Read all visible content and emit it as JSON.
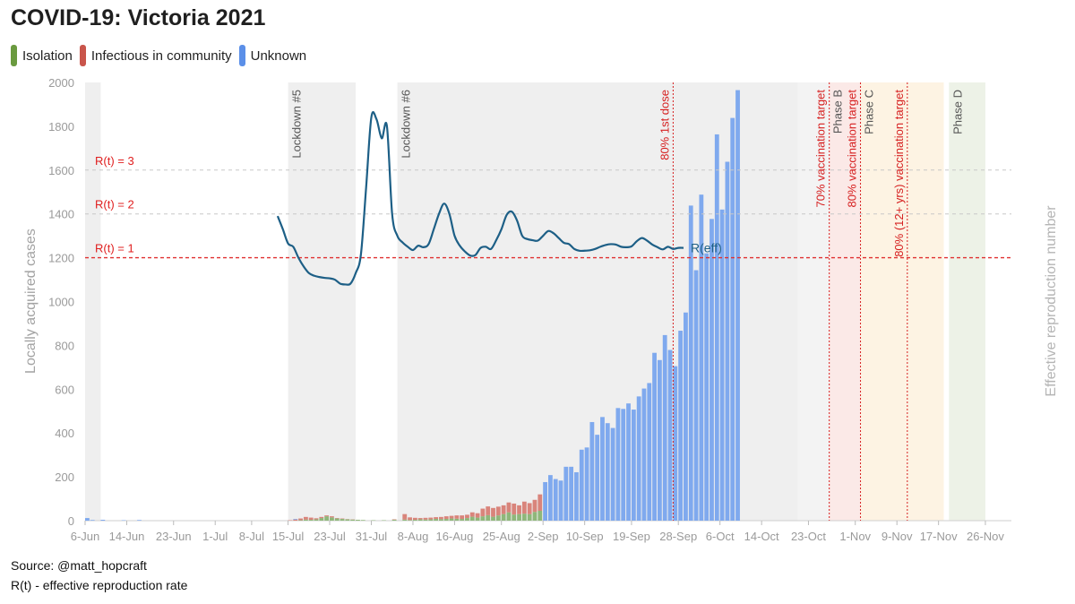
{
  "title": "COVID-19: Victoria 2021",
  "legend": [
    {
      "label": "Isolation",
      "color": "#6a9a3f"
    },
    {
      "label": "Infectious in community",
      "color": "#c9554b"
    },
    {
      "label": "Unknown",
      "color": "#5b8fe8"
    }
  ],
  "footer": {
    "source": "Source: @matt_hopcraft",
    "note": "R(t) - effective reproduction rate"
  },
  "chart_data": {
    "type": "bar",
    "title": "COVID-19: Victoria 2021",
    "ylabel": "Locally acquired cases",
    "y2label": "Effective reproduction number",
    "ylim": [
      0,
      2000
    ],
    "yticks": [
      0,
      200,
      400,
      600,
      800,
      1000,
      1200,
      1400,
      1600,
      1800,
      2000
    ],
    "xlim": [
      "2021-06-06",
      "2021-12-01"
    ],
    "xticks": [
      {
        "date": "2021-06-06",
        "label": "6-Jun"
      },
      {
        "date": "2021-06-14",
        "label": "14-Jun"
      },
      {
        "date": "2021-06-23",
        "label": "23-Jun"
      },
      {
        "date": "2021-07-01",
        "label": "1-Jul"
      },
      {
        "date": "2021-07-08",
        "label": "8-Jul"
      },
      {
        "date": "2021-07-15",
        "label": "15-Jul"
      },
      {
        "date": "2021-07-23",
        "label": "23-Jul"
      },
      {
        "date": "2021-07-31",
        "label": "31-Jul"
      },
      {
        "date": "2021-08-08",
        "label": "8-Aug"
      },
      {
        "date": "2021-08-16",
        "label": "16-Aug"
      },
      {
        "date": "2021-08-25",
        "label": "25-Aug"
      },
      {
        "date": "2021-09-02",
        "label": "2-Sep"
      },
      {
        "date": "2021-09-10",
        "label": "10-Sep"
      },
      {
        "date": "2021-09-19",
        "label": "19-Sep"
      },
      {
        "date": "2021-09-28",
        "label": "28-Sep"
      },
      {
        "date": "2021-10-06",
        "label": "6-Oct"
      },
      {
        "date": "2021-10-14",
        "label": "14-Oct"
      },
      {
        "date": "2021-10-23",
        "label": "23-Oct"
      },
      {
        "date": "2021-11-01",
        "label": "1-Nov"
      },
      {
        "date": "2021-11-09",
        "label": "9-Nov"
      },
      {
        "date": "2021-11-17",
        "label": "17-Nov"
      },
      {
        "date": "2021-11-26",
        "label": "26-Nov"
      }
    ],
    "shaded_periods": [
      {
        "start": "2021-06-06",
        "end": "2021-06-09",
        "color": "#efefef",
        "label": ""
      },
      {
        "start": "2021-07-15",
        "end": "2021-07-28",
        "color": "#efefef",
        "label": "Lockdown #5"
      },
      {
        "start": "2021-08-05",
        "end": "2021-10-21",
        "color": "#efefef",
        "label": "Lockdown #6"
      },
      {
        "start": "2021-10-21",
        "end": "2021-10-27",
        "color": "#f3f3f3",
        "label": ""
      },
      {
        "start": "2021-10-27",
        "end": "2021-11-02",
        "color": "#fbe9e7",
        "label": "Phase B"
      },
      {
        "start": "2021-11-02",
        "end": "2021-11-11",
        "color": "#fdf3e3",
        "label": "Phase C"
      },
      {
        "start": "2021-11-11",
        "end": "2021-11-18",
        "color": "#fdf3e3",
        "label": ""
      },
      {
        "start": "2021-11-19",
        "end": "2021-11-26",
        "color": "#edf2e7",
        "label": "Phase D"
      }
    ],
    "vertical_markers": [
      {
        "date": "2021-09-27",
        "label": "80% 1st dose",
        "color": "#d62020"
      },
      {
        "date": "2021-10-27",
        "label": "70% vaccination target",
        "color": "#d62020"
      },
      {
        "date": "2021-11-02",
        "label": "80% vaccination target",
        "color": "#d62020"
      },
      {
        "date": "2021-11-11",
        "label": "80% (12+ yrs) vaccination target",
        "color": "#d62020"
      }
    ],
    "reference_lines": [
      {
        "value": 3,
        "y_equiv": 1600,
        "label": "R(t) = 3",
        "style": "dashed-grey"
      },
      {
        "value": 2,
        "y_equiv": 1400,
        "label": "R(t) = 2",
        "style": "dashed-grey"
      },
      {
        "value": 1,
        "y_equiv": 1200,
        "label": "R(t) = 1",
        "style": "dashed-red"
      }
    ],
    "stacked_series_names": [
      "Isolation",
      "Infectious in community",
      "Unknown"
    ],
    "stacked_series_colors": [
      "#8fb77a",
      "#d9847b",
      "#7fa9ee"
    ],
    "bars": [
      {
        "date": "2021-06-06",
        "values": [
          0,
          0,
          12
        ]
      },
      {
        "date": "2021-06-07",
        "values": [
          0,
          0,
          3
        ]
      },
      {
        "date": "2021-06-09",
        "values": [
          0,
          0,
          4
        ]
      },
      {
        "date": "2021-06-13",
        "values": [
          0,
          0,
          2
        ]
      },
      {
        "date": "2021-06-16",
        "values": [
          0,
          0,
          3
        ]
      },
      {
        "date": "2021-07-15",
        "values": [
          0,
          2,
          0
        ]
      },
      {
        "date": "2021-07-16",
        "values": [
          0,
          5,
          3
        ]
      },
      {
        "date": "2021-07-17",
        "values": [
          2,
          8,
          0
        ]
      },
      {
        "date": "2021-07-18",
        "values": [
          5,
          12,
          0
        ]
      },
      {
        "date": "2021-07-19",
        "values": [
          4,
          10,
          0
        ]
      },
      {
        "date": "2021-07-20",
        "values": [
          6,
          5,
          0
        ]
      },
      {
        "date": "2021-07-21",
        "values": [
          12,
          5,
          0
        ]
      },
      {
        "date": "2021-07-22",
        "values": [
          20,
          4,
          0
        ]
      },
      {
        "date": "2021-07-23",
        "values": [
          15,
          5,
          0
        ]
      },
      {
        "date": "2021-07-24",
        "values": [
          10,
          2,
          0
        ]
      },
      {
        "date": "2021-07-25",
        "values": [
          8,
          2,
          0
        ]
      },
      {
        "date": "2021-07-26",
        "values": [
          6,
          1,
          0
        ]
      },
      {
        "date": "2021-07-27",
        "values": [
          5,
          1,
          0
        ]
      },
      {
        "date": "2021-07-28",
        "values": [
          4,
          0,
          0
        ]
      },
      {
        "date": "2021-07-29",
        "values": [
          3,
          0,
          0
        ]
      },
      {
        "date": "2021-07-31",
        "values": [
          2,
          0,
          0
        ]
      },
      {
        "date": "2021-08-02",
        "values": [
          2,
          0,
          0
        ]
      },
      {
        "date": "2021-08-04",
        "values": [
          4,
          2,
          0
        ]
      },
      {
        "date": "2021-08-06",
        "values": [
          5,
          25,
          0
        ]
      },
      {
        "date": "2021-08-07",
        "values": [
          3,
          12,
          0
        ]
      },
      {
        "date": "2021-08-08",
        "values": [
          4,
          9,
          0
        ]
      },
      {
        "date": "2021-08-09",
        "values": [
          6,
          6,
          0
        ]
      },
      {
        "date": "2021-08-10",
        "values": [
          5,
          8,
          0
        ]
      },
      {
        "date": "2021-08-11",
        "values": [
          6,
          8,
          0
        ]
      },
      {
        "date": "2021-08-12",
        "values": [
          8,
          8,
          0
        ]
      },
      {
        "date": "2021-08-13",
        "values": [
          7,
          10,
          0
        ]
      },
      {
        "date": "2021-08-14",
        "values": [
          8,
          12,
          0
        ]
      },
      {
        "date": "2021-08-15",
        "values": [
          10,
          12,
          0
        ]
      },
      {
        "date": "2021-08-16",
        "values": [
          9,
          15,
          0
        ]
      },
      {
        "date": "2021-08-17",
        "values": [
          8,
          16,
          0
        ]
      },
      {
        "date": "2021-08-18",
        "values": [
          12,
          15,
          0
        ]
      },
      {
        "date": "2021-08-19",
        "values": [
          18,
          20,
          0
        ]
      },
      {
        "date": "2021-08-20",
        "values": [
          14,
          20,
          0
        ]
      },
      {
        "date": "2021-08-21",
        "values": [
          20,
          35,
          0
        ]
      },
      {
        "date": "2021-08-22",
        "values": [
          25,
          40,
          0
        ]
      },
      {
        "date": "2021-08-23",
        "values": [
          18,
          40,
          0
        ]
      },
      {
        "date": "2021-08-24",
        "values": [
          24,
          40,
          0
        ]
      },
      {
        "date": "2021-08-25",
        "values": [
          30,
          40,
          0
        ]
      },
      {
        "date": "2021-08-26",
        "values": [
          38,
          45,
          0
        ]
      },
      {
        "date": "2021-08-27",
        "values": [
          28,
          50,
          0
        ]
      },
      {
        "date": "2021-08-28",
        "values": [
          30,
          40,
          0
        ]
      },
      {
        "date": "2021-08-29",
        "values": [
          32,
          55,
          0
        ]
      },
      {
        "date": "2021-08-30",
        "values": [
          30,
          50,
          0
        ]
      },
      {
        "date": "2021-08-31",
        "values": [
          40,
          55,
          0
        ]
      },
      {
        "date": "2021-09-01",
        "values": [
          45,
          75,
          0
        ]
      },
      {
        "date": "2021-09-02",
        "values": [
          0,
          0,
          176
        ]
      },
      {
        "date": "2021-09-03",
        "values": [
          0,
          0,
          208
        ]
      },
      {
        "date": "2021-09-04",
        "values": [
          0,
          0,
          190
        ]
      },
      {
        "date": "2021-09-05",
        "values": [
          0,
          0,
          183
        ]
      },
      {
        "date": "2021-09-06",
        "values": [
          0,
          0,
          246
        ]
      },
      {
        "date": "2021-09-07",
        "values": [
          0,
          0,
          246
        ]
      },
      {
        "date": "2021-09-08",
        "values": [
          0,
          0,
          221
        ]
      },
      {
        "date": "2021-09-09",
        "values": [
          0,
          0,
          324
        ]
      },
      {
        "date": "2021-09-10",
        "values": [
          0,
          0,
          334
        ]
      },
      {
        "date": "2021-09-11",
        "values": [
          0,
          0,
          450
        ]
      },
      {
        "date": "2021-09-12",
        "values": [
          0,
          0,
          392
        ]
      },
      {
        "date": "2021-09-13",
        "values": [
          0,
          0,
          473
        ]
      },
      {
        "date": "2021-09-14",
        "values": [
          0,
          0,
          445
        ]
      },
      {
        "date": "2021-09-15",
        "values": [
          0,
          0,
          423
        ]
      },
      {
        "date": "2021-09-16",
        "values": [
          0,
          0,
          514
        ]
      },
      {
        "date": "2021-09-17",
        "values": [
          0,
          0,
          510
        ]
      },
      {
        "date": "2021-09-18",
        "values": [
          0,
          0,
          535
        ]
      },
      {
        "date": "2021-09-19",
        "values": [
          0,
          0,
          507
        ]
      },
      {
        "date": "2021-09-20",
        "values": [
          0,
          0,
          567
        ]
      },
      {
        "date": "2021-09-21",
        "values": [
          0,
          0,
          603
        ]
      },
      {
        "date": "2021-09-22",
        "values": [
          0,
          0,
          628
        ]
      },
      {
        "date": "2021-09-23",
        "values": [
          0,
          0,
          766
        ]
      },
      {
        "date": "2021-09-24",
        "values": [
          0,
          0,
          733
        ]
      },
      {
        "date": "2021-09-25",
        "values": [
          0,
          0,
          847
        ]
      },
      {
        "date": "2021-09-26",
        "values": [
          0,
          0,
          779
        ]
      },
      {
        "date": "2021-09-27",
        "values": [
          0,
          0,
          705
        ]
      },
      {
        "date": "2021-09-28",
        "values": [
          0,
          0,
          867
        ]
      },
      {
        "date": "2021-09-29",
        "values": [
          0,
          0,
          950
        ]
      },
      {
        "date": "2021-09-30",
        "values": [
          0,
          0,
          1438
        ]
      },
      {
        "date": "2021-10-01",
        "values": [
          0,
          0,
          1143
        ]
      },
      {
        "date": "2021-10-02",
        "values": [
          0,
          0,
          1488
        ]
      },
      {
        "date": "2021-10-03",
        "values": [
          0,
          0,
          1220
        ]
      },
      {
        "date": "2021-10-04",
        "values": [
          0,
          0,
          1377
        ]
      },
      {
        "date": "2021-10-05",
        "values": [
          0,
          0,
          1763
        ]
      },
      {
        "date": "2021-10-06",
        "values": [
          0,
          0,
          1420
        ]
      },
      {
        "date": "2021-10-07",
        "values": [
          0,
          0,
          1638
        ]
      },
      {
        "date": "2021-10-08",
        "values": [
          0,
          0,
          1838
        ]
      },
      {
        "date": "2021-10-09",
        "values": [
          0,
          0,
          1965
        ]
      }
    ],
    "reff_line": {
      "label": "R(eff)",
      "color": "#1d5f86",
      "points": [
        [
          "2021-07-13",
          1390
        ],
        [
          "2021-07-14",
          1330
        ],
        [
          "2021-07-15",
          1265
        ],
        [
          "2021-07-16",
          1250
        ],
        [
          "2021-07-17",
          1200
        ],
        [
          "2021-07-18",
          1160
        ],
        [
          "2021-07-19",
          1130
        ],
        [
          "2021-07-20",
          1118
        ],
        [
          "2021-07-21",
          1112
        ],
        [
          "2021-07-22",
          1108
        ],
        [
          "2021-07-23",
          1106
        ],
        [
          "2021-07-24",
          1100
        ],
        [
          "2021-07-25",
          1082
        ],
        [
          "2021-07-26",
          1078
        ],
        [
          "2021-07-27",
          1082
        ],
        [
          "2021-07-28",
          1130
        ],
        [
          "2021-07-29",
          1215
        ],
        [
          "2021-07-30",
          1520
        ],
        [
          "2021-07-31",
          1840
        ],
        [
          "2021-08-01",
          1832
        ],
        [
          "2021-08-02",
          1745
        ],
        [
          "2021-08-03",
          1800
        ],
        [
          "2021-08-04",
          1400
        ],
        [
          "2021-08-05",
          1300
        ],
        [
          "2021-08-06",
          1270
        ],
        [
          "2021-08-07",
          1250
        ],
        [
          "2021-08-08",
          1235
        ],
        [
          "2021-08-09",
          1255
        ],
        [
          "2021-08-10",
          1248
        ],
        [
          "2021-08-11",
          1262
        ],
        [
          "2021-08-12",
          1330
        ],
        [
          "2021-08-13",
          1400
        ],
        [
          "2021-08-14",
          1447
        ],
        [
          "2021-08-15",
          1400
        ],
        [
          "2021-08-16",
          1300
        ],
        [
          "2021-08-17",
          1255
        ],
        [
          "2021-08-18",
          1228
        ],
        [
          "2021-08-19",
          1210
        ],
        [
          "2021-08-20",
          1212
        ],
        [
          "2021-08-21",
          1245
        ],
        [
          "2021-08-22",
          1250
        ],
        [
          "2021-08-23",
          1240
        ],
        [
          "2021-08-24",
          1280
        ],
        [
          "2021-08-25",
          1330
        ],
        [
          "2021-08-26",
          1395
        ],
        [
          "2021-08-27",
          1410
        ],
        [
          "2021-08-28",
          1370
        ],
        [
          "2021-08-29",
          1300
        ],
        [
          "2021-08-30",
          1285
        ],
        [
          "2021-08-31",
          1280
        ],
        [
          "2021-09-01",
          1278
        ],
        [
          "2021-09-02",
          1300
        ],
        [
          "2021-09-03",
          1322
        ],
        [
          "2021-09-04",
          1312
        ],
        [
          "2021-09-05",
          1290
        ],
        [
          "2021-09-06",
          1268
        ],
        [
          "2021-09-07",
          1262
        ],
        [
          "2021-09-08",
          1240
        ],
        [
          "2021-09-09",
          1232
        ],
        [
          "2021-09-10",
          1232
        ],
        [
          "2021-09-11",
          1234
        ],
        [
          "2021-09-12",
          1240
        ],
        [
          "2021-09-13",
          1250
        ],
        [
          "2021-09-14",
          1258
        ],
        [
          "2021-09-15",
          1262
        ],
        [
          "2021-09-16",
          1260
        ],
        [
          "2021-09-17",
          1250
        ],
        [
          "2021-09-18",
          1248
        ],
        [
          "2021-09-19",
          1252
        ],
        [
          "2021-09-20",
          1275
        ],
        [
          "2021-09-21",
          1290
        ],
        [
          "2021-09-22",
          1278
        ],
        [
          "2021-09-23",
          1260
        ],
        [
          "2021-09-24",
          1248
        ],
        [
          "2021-09-25",
          1238
        ],
        [
          "2021-09-26",
          1250
        ],
        [
          "2021-09-27",
          1240
        ],
        [
          "2021-09-28",
          1245
        ],
        [
          "2021-09-29",
          1245
        ]
      ]
    }
  }
}
